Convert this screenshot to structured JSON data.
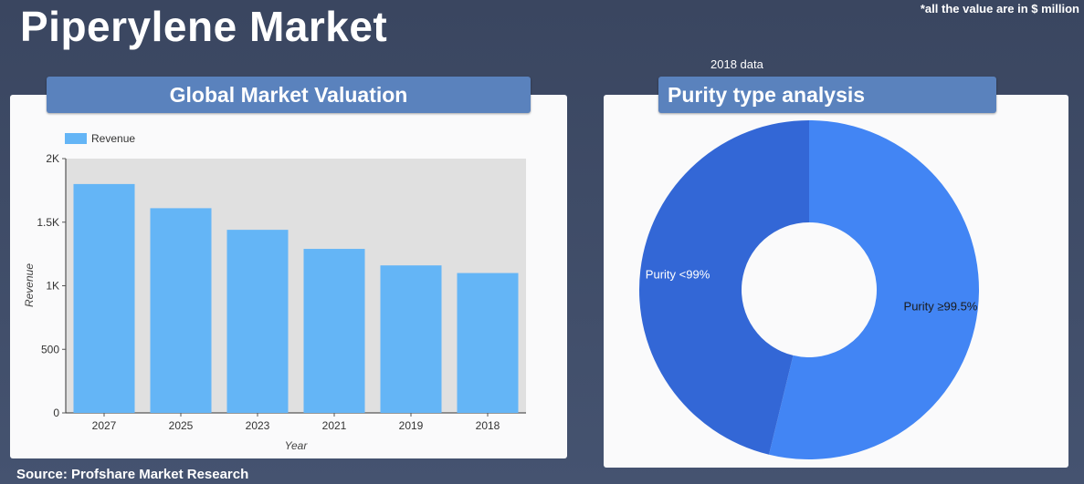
{
  "page": {
    "title": "Piperylene Market",
    "value_note": "*all the value are in $ million",
    "source": "Source: Profshare Market Research",
    "year_note": "2018 data"
  },
  "colors": {
    "bar": "#64b5f6",
    "plot_bg": "#e0e0e0",
    "slice_high": "#4285f4",
    "slice_low": "#3367d6"
  },
  "chart_data": [
    {
      "type": "bar",
      "title": "Global Market Valuation",
      "xlabel": "Year",
      "ylabel": "Revenue",
      "legend": "Revenue",
      "legend_position": "top-left",
      "categories": [
        "2027",
        "2025",
        "2023",
        "2021",
        "2019",
        "2018"
      ],
      "values": [
        1800,
        1610,
        1440,
        1290,
        1160,
        1100
      ],
      "ylim": [
        0,
        2000
      ],
      "yticks": [
        0,
        500,
        1000,
        1500,
        2000
      ],
      "ytick_labels": [
        "0",
        "500",
        "1K",
        "1.5K",
        "2K"
      ],
      "grid": false
    },
    {
      "type": "pie",
      "title": "Purity type analysis",
      "donut": true,
      "slices": [
        {
          "label": "Purity ≥99.5%",
          "value": 53.8
        },
        {
          "label": "Purity <99%",
          "value": 46.2
        }
      ]
    }
  ]
}
